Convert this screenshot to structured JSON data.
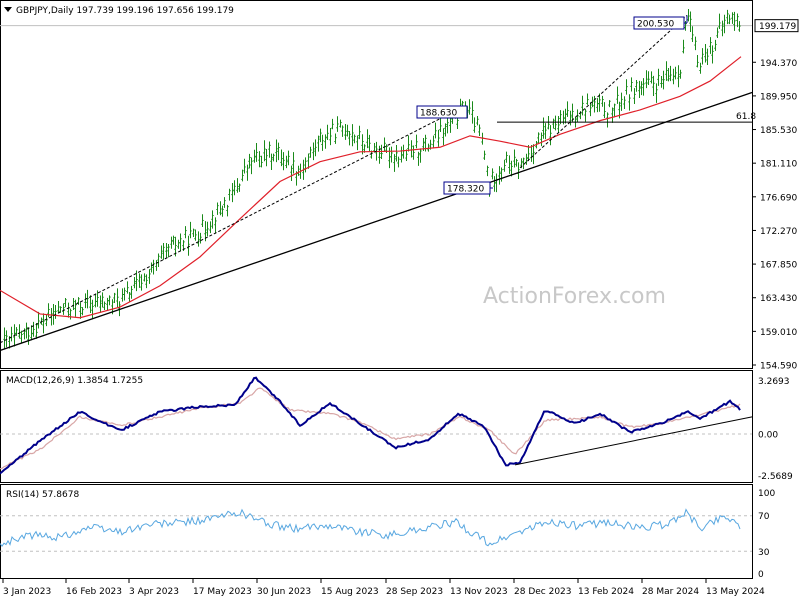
{
  "header": {
    "symbol_line": "GBPJPY,Daily  197.739 199.196 197.656 199.179"
  },
  "watermark": "ActionForex.com",
  "colors": {
    "bars": "#1a8a1a",
    "ma": "#e0202a",
    "macd": "#00008b",
    "macd_signal": "#d8a6a6",
    "rsi": "#58a7e0",
    "trend": "#000000",
    "grid": "#c0c0c0"
  },
  "price_panel": {
    "last_price_label": "199.179",
    "annotations": {
      "high_label": "200.530",
      "mid_high_label": "188.630",
      "low_label": "178.320",
      "fib_label": "61.8"
    }
  },
  "macd_panel": {
    "title": "MACD(12,26,9) 1.3854 1.7255",
    "scale_top": "3.2693",
    "scale_zero": "0.00",
    "scale_bottom": "-2.5689"
  },
  "rsi_panel": {
    "title": "RSI(14) 57.8678",
    "scale_100": "100",
    "scale_70": "70",
    "scale_30": "30",
    "scale_0": "0"
  },
  "chart_data": [
    {
      "type": "candlestick",
      "title": "GBPJPY,Daily  197.739 199.196 197.656 199.179",
      "yticks": [
        "199.179",
        "194.370",
        "189.950",
        "185.530",
        "181.110",
        "176.690",
        "172.270",
        "167.850",
        "163.430",
        "159.010",
        "154.590"
      ],
      "xticks": [
        "3 Jan 2023",
        "16 Feb 2023",
        "3 Apr 2023",
        "17 May 2023",
        "30 Jun 2023",
        "15 Aug 2023",
        "28 Sep 2023",
        "13 Nov 2023",
        "28 Dec 2023",
        "13 Feb 2024",
        "28 Mar 2024",
        "13 May 2024"
      ],
      "ylim": [
        154.59,
        201.5
      ],
      "price_points": [
        {
          "x": 0,
          "y": 157.2
        },
        {
          "x": 30,
          "y": 159.0
        },
        {
          "x": 60,
          "y": 161.9
        },
        {
          "x": 90,
          "y": 162.5
        },
        {
          "x": 120,
          "y": 163.0
        },
        {
          "x": 150,
          "y": 166.6
        },
        {
          "x": 170,
          "y": 170.0
        },
        {
          "x": 200,
          "y": 172.0
        },
        {
          "x": 230,
          "y": 176.4
        },
        {
          "x": 250,
          "y": 181.2
        },
        {
          "x": 275,
          "y": 182.6
        },
        {
          "x": 300,
          "y": 180.0
        },
        {
          "x": 320,
          "y": 184.2
        },
        {
          "x": 345,
          "y": 185.8
        },
        {
          "x": 370,
          "y": 183.0
        },
        {
          "x": 400,
          "y": 182.0
        },
        {
          "x": 430,
          "y": 183.6
        },
        {
          "x": 455,
          "y": 186.8
        },
        {
          "x": 465,
          "y": 188.63
        },
        {
          "x": 480,
          "y": 185.0
        },
        {
          "x": 489,
          "y": 178.32
        },
        {
          "x": 505,
          "y": 181.2
        },
        {
          "x": 520,
          "y": 180.5
        },
        {
          "x": 540,
          "y": 184.5
        },
        {
          "x": 560,
          "y": 186.5
        },
        {
          "x": 590,
          "y": 188.8
        },
        {
          "x": 610,
          "y": 188.0
        },
        {
          "x": 635,
          "y": 191.0
        },
        {
          "x": 660,
          "y": 191.5
        },
        {
          "x": 680,
          "y": 193.5
        },
        {
          "x": 687,
          "y": 200.53
        },
        {
          "x": 698,
          "y": 194.2
        },
        {
          "x": 712,
          "y": 196.5
        },
        {
          "x": 728,
          "y": 200.4
        },
        {
          "x": 741,
          "y": 199.18
        }
      ],
      "moving_average": [
        {
          "x": 0,
          "y": 164.4
        },
        {
          "x": 40,
          "y": 161.3
        },
        {
          "x": 80,
          "y": 160.8
        },
        {
          "x": 120,
          "y": 162.2
        },
        {
          "x": 160,
          "y": 165.0
        },
        {
          "x": 200,
          "y": 168.8
        },
        {
          "x": 240,
          "y": 173.8
        },
        {
          "x": 280,
          "y": 178.7
        },
        {
          "x": 320,
          "y": 181.3
        },
        {
          "x": 360,
          "y": 182.6
        },
        {
          "x": 400,
          "y": 182.7
        },
        {
          "x": 440,
          "y": 183.2
        },
        {
          "x": 470,
          "y": 184.7
        },
        {
          "x": 500,
          "y": 184.0
        },
        {
          "x": 530,
          "y": 183.2
        },
        {
          "x": 560,
          "y": 184.9
        },
        {
          "x": 600,
          "y": 186.7
        },
        {
          "x": 640,
          "y": 188.1
        },
        {
          "x": 680,
          "y": 189.9
        },
        {
          "x": 710,
          "y": 191.9
        },
        {
          "x": 741,
          "y": 195.1
        }
      ],
      "trend_lines": [
        {
          "from": {
            "x": 0,
            "y": 156.5
          },
          "to": {
            "x": 752,
            "y": 190.4
          }
        },
        {
          "from": {
            "x": 0,
            "y": 157.5
          },
          "to": {
            "x": 465,
            "y": 188.63
          }
        },
        {
          "from": {
            "x": 520,
            "y": 180.5
          },
          "to": {
            "x": 687,
            "y": 200.53
          }
        }
      ],
      "fib_level": 186.5
    },
    {
      "type": "line",
      "title": "MACD(12,26,9) 1.3854 1.7255",
      "ylim": [
        -2.5689,
        3.2693
      ],
      "series": [
        {
          "name": "MACD",
          "points": [
            {
              "x": 0,
              "y": -2.3
            },
            {
              "x": 40,
              "y": -0.4
            },
            {
              "x": 80,
              "y": 1.3
            },
            {
              "x": 120,
              "y": 0.2
            },
            {
              "x": 160,
              "y": 1.3
            },
            {
              "x": 200,
              "y": 1.6
            },
            {
              "x": 235,
              "y": 1.7
            },
            {
              "x": 255,
              "y": 3.3
            },
            {
              "x": 280,
              "y": 1.9
            },
            {
              "x": 300,
              "y": 0.5
            },
            {
              "x": 330,
              "y": 1.8
            },
            {
              "x": 360,
              "y": 0.6
            },
            {
              "x": 395,
              "y": -0.8
            },
            {
              "x": 430,
              "y": -0.3
            },
            {
              "x": 458,
              "y": 1.2
            },
            {
              "x": 485,
              "y": 0.4
            },
            {
              "x": 505,
              "y": -1.8
            },
            {
              "x": 520,
              "y": -1.7
            },
            {
              "x": 545,
              "y": 1.4
            },
            {
              "x": 575,
              "y": 0.6
            },
            {
              "x": 600,
              "y": 1.2
            },
            {
              "x": 630,
              "y": 0.1
            },
            {
              "x": 660,
              "y": 0.6
            },
            {
              "x": 688,
              "y": 1.3
            },
            {
              "x": 700,
              "y": 0.9
            },
            {
              "x": 730,
              "y": 1.9
            },
            {
              "x": 741,
              "y": 1.39
            }
          ]
        },
        {
          "name": "Signal",
          "points": [
            {
              "x": 0,
              "y": -2.0
            },
            {
              "x": 40,
              "y": -0.9
            },
            {
              "x": 80,
              "y": 1.0
            },
            {
              "x": 120,
              "y": 0.5
            },
            {
              "x": 160,
              "y": 1.0
            },
            {
              "x": 200,
              "y": 1.5
            },
            {
              "x": 240,
              "y": 1.8
            },
            {
              "x": 260,
              "y": 2.7
            },
            {
              "x": 290,
              "y": 1.4
            },
            {
              "x": 330,
              "y": 1.2
            },
            {
              "x": 360,
              "y": 0.7
            },
            {
              "x": 395,
              "y": -0.3
            },
            {
              "x": 430,
              "y": 0.0
            },
            {
              "x": 460,
              "y": 1.0
            },
            {
              "x": 490,
              "y": 0.2
            },
            {
              "x": 515,
              "y": -1.2
            },
            {
              "x": 545,
              "y": 0.8
            },
            {
              "x": 575,
              "y": 0.9
            },
            {
              "x": 600,
              "y": 1.0
            },
            {
              "x": 630,
              "y": 0.4
            },
            {
              "x": 660,
              "y": 0.6
            },
            {
              "x": 690,
              "y": 1.0
            },
            {
              "x": 720,
              "y": 1.4
            },
            {
              "x": 741,
              "y": 1.73
            }
          ]
        }
      ],
      "trend_line": {
        "from": {
          "x": 515,
          "y": -1.8
        },
        "to": {
          "x": 752,
          "y": 1.0
        }
      }
    },
    {
      "type": "line",
      "title": "RSI(14) 57.8678",
      "ylim": [
        0,
        100
      ],
      "series": [
        {
          "name": "RSI",
          "points": [
            {
              "x": 0,
              "y": 38
            },
            {
              "x": 30,
              "y": 48
            },
            {
              "x": 60,
              "y": 46
            },
            {
              "x": 90,
              "y": 57
            },
            {
              "x": 120,
              "y": 52
            },
            {
              "x": 150,
              "y": 60
            },
            {
              "x": 180,
              "y": 62
            },
            {
              "x": 210,
              "y": 66
            },
            {
              "x": 240,
              "y": 74
            },
            {
              "x": 270,
              "y": 60
            },
            {
              "x": 300,
              "y": 55
            },
            {
              "x": 330,
              "y": 60
            },
            {
              "x": 360,
              "y": 52
            },
            {
              "x": 390,
              "y": 48
            },
            {
              "x": 420,
              "y": 55
            },
            {
              "x": 455,
              "y": 63
            },
            {
              "x": 490,
              "y": 38
            },
            {
              "x": 520,
              "y": 52
            },
            {
              "x": 550,
              "y": 63
            },
            {
              "x": 580,
              "y": 58
            },
            {
              "x": 610,
              "y": 63
            },
            {
              "x": 640,
              "y": 56
            },
            {
              "x": 670,
              "y": 61
            },
            {
              "x": 685,
              "y": 75
            },
            {
              "x": 700,
              "y": 56
            },
            {
              "x": 725,
              "y": 70
            },
            {
              "x": 741,
              "y": 57.87
            }
          ]
        }
      ]
    }
  ]
}
